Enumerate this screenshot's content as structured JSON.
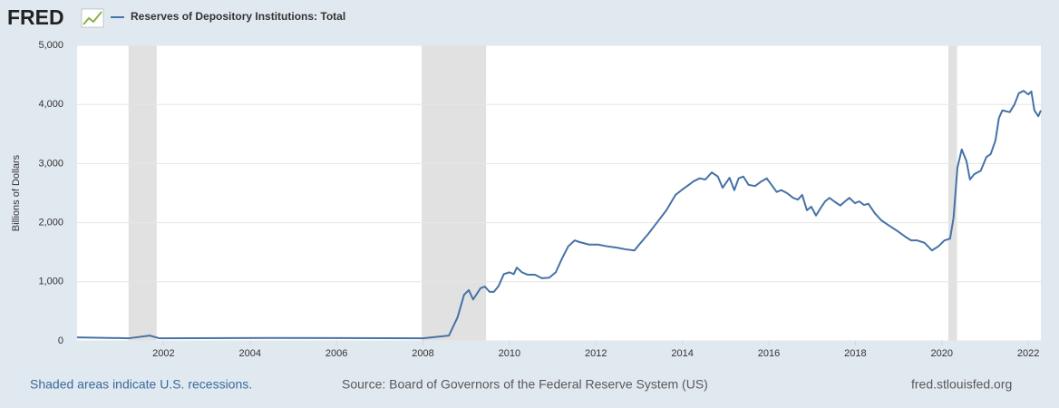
{
  "logo": "FRED",
  "chart_data": {
    "type": "line",
    "y_label": "Billions of Dollars",
    "x": [
      2000.0,
      2001.2,
      2001.68,
      2001.9,
      2004.5,
      2008.0,
      2008.6,
      2008.8,
      2008.95,
      2009.06,
      2009.16,
      2009.33,
      2009.43,
      2009.54,
      2009.64,
      2009.75,
      2009.87,
      2010.0,
      2010.1,
      2010.17,
      2010.29,
      2010.42,
      2010.59,
      2010.75,
      2010.92,
      2011.07,
      2011.22,
      2011.36,
      2011.51,
      2011.63,
      2011.84,
      2012.05,
      2012.26,
      2012.47,
      2012.68,
      2012.89,
      2013.0,
      2013.21,
      2013.42,
      2013.63,
      2013.84,
      2013.98,
      2014.11,
      2014.26,
      2014.4,
      2014.53,
      2014.68,
      2014.82,
      2014.93,
      2015.09,
      2015.2,
      2015.3,
      2015.41,
      2015.53,
      2015.68,
      2015.83,
      2015.95,
      2016.08,
      2016.18,
      2016.29,
      2016.42,
      2016.56,
      2016.67,
      2016.77,
      2016.88,
      2016.98,
      2017.09,
      2017.19,
      2017.3,
      2017.4,
      2017.51,
      2017.65,
      2017.76,
      2017.86,
      2017.99,
      2018.09,
      2018.2,
      2018.3,
      2018.45,
      2018.6,
      2018.76,
      2018.97,
      2019.18,
      2019.29,
      2019.43,
      2019.6,
      2019.77,
      2019.92,
      2020.06,
      2020.19,
      2020.27,
      2020.36,
      2020.46,
      2020.57,
      2020.65,
      2020.75,
      2020.9,
      2021.03,
      2021.13,
      2021.24,
      2021.32,
      2021.4,
      2021.57,
      2021.68,
      2021.78,
      2021.89,
      2022.0,
      2022.07,
      2022.14,
      2022.23,
      2022.29
    ],
    "series": [
      {
        "name": "Reserves of Depository Institutions: Total",
        "color": "#4572a7",
        "values": [
          60,
          45,
          90,
          45,
          50,
          45,
          90,
          400,
          780,
          860,
          700,
          890,
          920,
          830,
          830,
          930,
          1130,
          1160,
          1130,
          1240,
          1160,
          1120,
          1120,
          1060,
          1070,
          1160,
          1400,
          1600,
          1700,
          1670,
          1630,
          1630,
          1600,
          1580,
          1550,
          1530,
          1630,
          1810,
          2010,
          2210,
          2470,
          2550,
          2620,
          2700,
          2750,
          2730,
          2850,
          2780,
          2590,
          2760,
          2550,
          2750,
          2780,
          2640,
          2620,
          2700,
          2750,
          2620,
          2520,
          2550,
          2500,
          2420,
          2390,
          2470,
          2210,
          2270,
          2120,
          2240,
          2360,
          2420,
          2360,
          2290,
          2360,
          2420,
          2330,
          2360,
          2300,
          2320,
          2160,
          2040,
          1960,
          1860,
          1750,
          1700,
          1700,
          1660,
          1530,
          1600,
          1700,
          1730,
          2080,
          2930,
          3240,
          3040,
          2730,
          2820,
          2880,
          3110,
          3160,
          3390,
          3770,
          3900,
          3870,
          4000,
          4190,
          4230,
          4170,
          4220,
          3900,
          3800,
          3900
        ]
      }
    ],
    "recessions": [
      {
        "start": 2001.19,
        "end": 2001.84
      },
      {
        "start": 2007.97,
        "end": 2009.46
      },
      {
        "start": 2020.15,
        "end": 2020.35
      }
    ],
    "xlim": [
      2000,
      2022.29
    ],
    "xticks": [
      2002,
      2004,
      2006,
      2008,
      2010,
      2012,
      2014,
      2016,
      2018,
      2020,
      2022
    ],
    "ylim": [
      0,
      5000
    ],
    "yticks": [
      0,
      {
        "value": 1000,
        "label": "1,000"
      },
      {
        "value": 2000,
        "label": "2,000"
      },
      {
        "value": 3000,
        "label": "3,000"
      },
      {
        "value": 4000,
        "label": "4,000"
      },
      {
        "value": 5000,
        "label": "5,000"
      }
    ],
    "grid": true
  },
  "footer": {
    "note": "Shaded areas indicate U.S. recessions.",
    "source": "Source: Board of Governors of the Federal Reserve System (US)",
    "site": "fred.stlouisfed.org"
  }
}
